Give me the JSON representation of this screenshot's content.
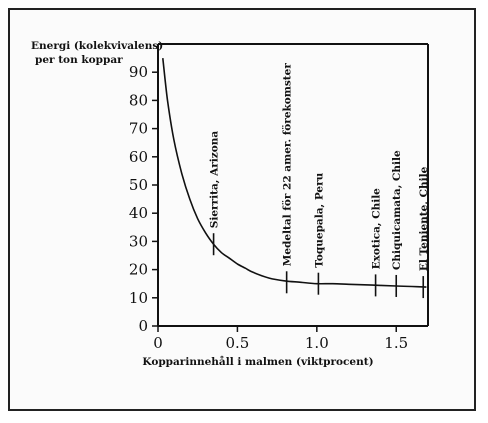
{
  "chart_data": {
    "type": "line",
    "title_lines": [
      "Energi (kolekvivalens)",
      "per ton koppar"
    ],
    "xlabel": "Kopparinnehåll i malmen (viktprocent)",
    "ylabel": "",
    "xlim": [
      0,
      1.7
    ],
    "ylim": [
      0,
      100
    ],
    "x_ticks": [
      0,
      0.5,
      1.0,
      1.5
    ],
    "x_tick_labels": [
      "0",
      "0.5",
      "1.0",
      "1.5"
    ],
    "y_ticks": [
      0,
      10,
      20,
      30,
      40,
      50,
      60,
      70,
      80,
      90
    ],
    "y_tick_labels": [
      "0",
      "10",
      "20",
      "30",
      "40",
      "50",
      "60",
      "70",
      "80",
      "90"
    ],
    "grid": false,
    "series": [
      {
        "x": [
          0.03,
          0.06,
          0.1,
          0.15,
          0.2,
          0.25,
          0.3,
          0.35,
          0.4,
          0.45,
          0.5,
          0.55,
          0.6,
          0.7,
          0.8,
          0.9,
          1.0,
          1.1,
          1.2,
          1.3,
          1.4,
          1.5,
          1.6,
          1.69
        ],
        "y": [
          95,
          80,
          66,
          54,
          45,
          38,
          33,
          29,
          26,
          24,
          22,
          20.5,
          19,
          17,
          16,
          15.5,
          15,
          15,
          14.8,
          14.6,
          14.4,
          14.2,
          14,
          13.8
        ]
      }
    ],
    "annotations": [
      {
        "label": "Sierrita, Arizona",
        "x": 0.35,
        "y": 29
      },
      {
        "label": "Medeltal för 22 amer. förekomster",
        "x": 0.81,
        "y": 15.5
      },
      {
        "label": "Toquepala, Peru",
        "x": 1.01,
        "y": 15
      },
      {
        "label": "Exotica, Chile",
        "x": 1.37,
        "y": 14.4
      },
      {
        "label": "Chiquicamata, Chile",
        "x": 1.5,
        "y": 14.2
      },
      {
        "label": "El Teniente, Chile",
        "x": 1.67,
        "y": 13.8
      }
    ]
  }
}
